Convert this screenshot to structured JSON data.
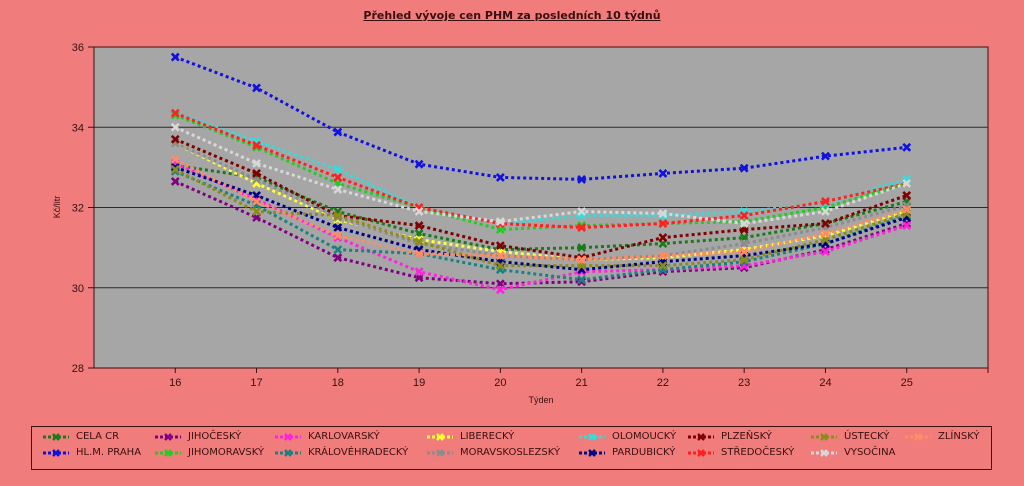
{
  "chart_data": {
    "type": "line",
    "title": "Přehled vývoje cen PHM za posledních 10 týdnů",
    "xlabel": "Týden",
    "ylabel": "Kč/litr",
    "xlim": [
      15,
      26
    ],
    "ylim": [
      28,
      36
    ],
    "x": [
      16,
      17,
      18,
      19,
      20,
      21,
      22,
      23,
      24,
      25
    ],
    "yticks": [
      28,
      30,
      32,
      34,
      36
    ],
    "grid": true,
    "legend_position": "bottom",
    "series": [
      {
        "name": "CELA CR",
        "color": "#1a7a1a",
        "values": [
          33.05,
          32.75,
          31.9,
          31.35,
          30.95,
          31.0,
          31.1,
          31.25,
          31.6,
          32.15
        ]
      },
      {
        "name": "HL.M. PRAHA",
        "color": "#1010e0",
        "values": [
          35.75,
          34.98,
          33.88,
          33.08,
          32.75,
          32.7,
          32.85,
          32.98,
          33.28,
          33.5
        ]
      },
      {
        "name": "JIHOČESKÝ",
        "color": "#800080",
        "values": [
          32.65,
          31.75,
          30.75,
          30.25,
          30.1,
          30.15,
          30.4,
          30.5,
          30.95,
          31.6
        ]
      },
      {
        "name": "JIHOMORAVSKÝ",
        "color": "#22cc22",
        "values": [
          34.3,
          33.5,
          32.6,
          32.0,
          31.45,
          31.55,
          31.6,
          31.65,
          32.0,
          32.6
        ]
      },
      {
        "name": "KARLOVARSKÝ",
        "color": "#ff22dd",
        "values": [
          33.1,
          32.2,
          31.25,
          30.4,
          29.95,
          30.4,
          30.45,
          30.55,
          30.9,
          31.55
        ]
      },
      {
        "name": "KRÁLOVÉHRADECKÝ",
        "color": "#1a8080",
        "values": [
          32.9,
          32.05,
          30.95,
          30.85,
          30.45,
          30.2,
          30.45,
          30.65,
          31.1,
          31.8
        ]
      },
      {
        "name": "LIBERECKÝ",
        "color": "#ffff33",
        "values": [
          33.6,
          32.6,
          31.7,
          31.2,
          30.9,
          30.7,
          30.75,
          30.95,
          31.3,
          31.9
        ]
      },
      {
        "name": "MORAVSKOSLEZSKÝ",
        "color": "#8c8c8c",
        "values": [
          33.6,
          32.7,
          31.75,
          31.1,
          30.8,
          30.7,
          30.8,
          31.1,
          31.5,
          32.05
        ]
      },
      {
        "name": "OLOMOUCKÝ",
        "color": "#33dddd",
        "values": [
          34.35,
          33.65,
          32.95,
          32.0,
          31.6,
          31.8,
          31.8,
          31.9,
          32.1,
          32.7
        ]
      },
      {
        "name": "PARDUBICKÝ",
        "color": "#000080",
        "values": [
          33.0,
          32.3,
          31.5,
          30.95,
          30.65,
          30.45,
          30.65,
          30.8,
          31.1,
          31.75
        ]
      },
      {
        "name": "PLZEŇSKÝ",
        "color": "#800000",
        "values": [
          33.7,
          32.85,
          31.8,
          31.55,
          31.05,
          30.75,
          31.25,
          31.45,
          31.6,
          32.3
        ]
      },
      {
        "name": "STŘEDOČESKÝ",
        "color": "#ff2020",
        "values": [
          34.35,
          33.55,
          32.75,
          32.0,
          31.6,
          31.5,
          31.6,
          31.8,
          32.15,
          32.6
        ]
      },
      {
        "name": "ÚSTECKÝ",
        "color": "#8c8c1a",
        "values": [
          32.95,
          31.9,
          31.8,
          31.15,
          30.55,
          30.55,
          30.55,
          30.7,
          31.2,
          31.85
        ]
      },
      {
        "name": "VYSOČINA",
        "color": "#d8d8d8",
        "values": [
          34.0,
          33.1,
          32.45,
          31.9,
          31.65,
          31.9,
          31.85,
          31.6,
          31.9,
          32.6
        ]
      },
      {
        "name": "ZLÍNSKÝ",
        "color": "#ff8c66",
        "values": [
          33.2,
          32.15,
          31.3,
          30.85,
          30.8,
          30.7,
          30.8,
          30.9,
          31.35,
          31.95
        ]
      }
    ]
  },
  "legend_order": [
    "CELA CR",
    "JIHOČESKÝ",
    "KARLOVARSKÝ",
    "LIBERECKÝ",
    "OLOMOUCKÝ",
    "PLZEŇSKÝ",
    "ÚSTECKÝ",
    "ZLÍNSKÝ",
    "HL.M. PRAHA",
    "JIHOMORAVSKÝ",
    "KRÁLOVÉHRADECKÝ",
    "MORAVSKOSLEZSKÝ",
    "PARDUBICKÝ",
    "STŘEDOČESKÝ",
    "VYSOČINA"
  ]
}
